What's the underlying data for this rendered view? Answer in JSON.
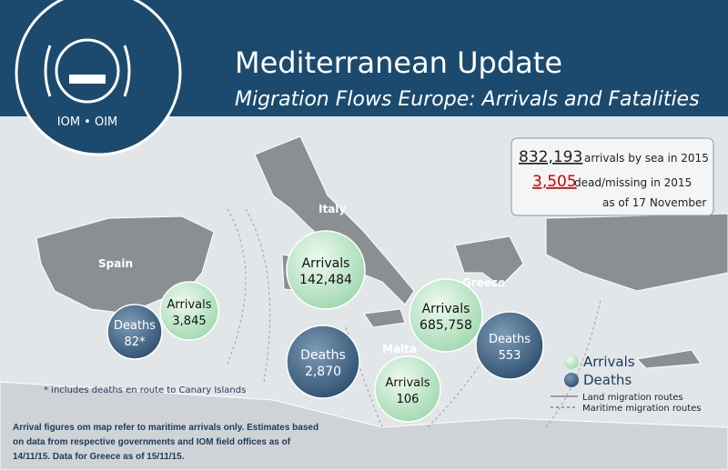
{
  "header": {
    "logo_text": "IOM • OIM",
    "title": "Mediterranean Update",
    "subtitle": "Migration Flows Europe: Arrivals and Fatalities"
  },
  "stats": {
    "arrivals_number": "832,193",
    "arrivals_text": "arrivals by sea in 2015",
    "dead_number": "3,505",
    "dead_text": "dead/missing in 2015",
    "date": "as of 17 November"
  },
  "countries": [
    "Spain",
    "Italy",
    "Greece",
    "Malta"
  ],
  "bubbles": [
    {
      "label": "Deaths",
      "value": "82*"
    },
    {
      "label": "Arrivals",
      "value": "3,845"
    },
    {
      "label": "Arrivals",
      "value": "142,484"
    },
    {
      "label": "Deaths",
      "value": "2,870"
    },
    {
      "label": "Arrivals",
      "value": "685,758"
    },
    {
      "label": "Deaths",
      "value": "553"
    },
    {
      "label": "Arrivals",
      "value": "106"
    }
  ],
  "legend": {
    "arrivals": "Arrivals",
    "deaths": "Deaths",
    "land": "Land migration  routes",
    "maritime": "Maritime migration routes"
  },
  "footnote": "* includes deaths en route to Canary Islands",
  "note": "Arrival figures  om map refer to maritime arrivals only. Estimates based on data from respective governments and IOM field offices as of 14/11/15. Data for Greece as of  15/11/15."
}
